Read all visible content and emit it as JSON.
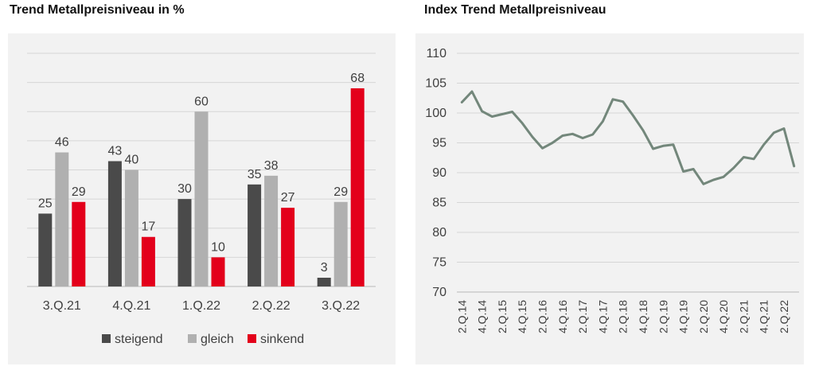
{
  "chart_data": [
    {
      "type": "bar",
      "title": "Trend Metallpreisniveau in %",
      "categories": [
        "3.Q.21",
        "4.Q.21",
        "1.Q.22",
        "2.Q.22",
        "3.Q.22"
      ],
      "series": [
        {
          "name": "steigend",
          "values": [
            25,
            43,
            30,
            35,
            3
          ],
          "color": "#4a4a4a"
        },
        {
          "name": "gleich",
          "values": [
            46,
            40,
            60,
            38,
            29
          ],
          "color": "#b0b0b0"
        },
        {
          "name": "sinkend",
          "values": [
            29,
            17,
            10,
            27,
            68
          ],
          "color": "#e3001b"
        }
      ],
      "ylim": [
        0,
        80
      ],
      "grid": true,
      "legend": "bottom"
    },
    {
      "type": "line",
      "title": "Index Trend Metallpreisniveau",
      "x": [
        "2.Q.14",
        "3.Q.14",
        "4.Q.14",
        "1.Q.15",
        "2.Q.15",
        "3.Q.15",
        "4.Q.15",
        "1.Q.16",
        "2.Q.16",
        "3.Q.16",
        "4.Q.16",
        "1.Q.17",
        "2.Q.17",
        "3.Q.17",
        "4.Q.17",
        "1.Q.18",
        "2.Q.18",
        "3.Q.18",
        "4.Q.18",
        "1.Q.19",
        "2.Q.19",
        "3.Q.19",
        "4.Q.19",
        "1.Q.20",
        "2.Q.20",
        "3.Q.20",
        "4.Q.20",
        "1.Q.21",
        "2.Q.21",
        "3.Q.21",
        "4.Q.21",
        "1.Q.22",
        "2.Q.22",
        "3.Q.22"
      ],
      "xticks": [
        "2.Q.14",
        "4.Q.14",
        "2.Q.15",
        "4.Q.15",
        "2.Q.16",
        "4.Q.16",
        "2.Q.17",
        "4.Q.17",
        "2.Q.18",
        "4.Q.18",
        "2.Q.19",
        "4.Q.19",
        "2.Q.20",
        "4.Q.20",
        "2.Q.21",
        "4.Q.21",
        "2.Q.22"
      ],
      "series": [
        {
          "values": [
            101.8,
            103.6,
            100.3,
            99.4,
            99.8,
            100.2,
            98.3,
            96.0,
            94.1,
            95.0,
            96.2,
            96.5,
            95.8,
            96.4,
            98.6,
            102.3,
            101.9,
            99.6,
            97.1,
            94.0,
            94.5,
            94.7,
            90.2,
            90.6,
            88.1,
            88.8,
            89.3,
            90.8,
            92.6,
            92.3,
            94.7,
            96.7,
            97.4,
            91.1
          ],
          "color": "#73877b"
        }
      ],
      "yticks": [
        "110",
        "105",
        "100",
        "95",
        "90",
        "85",
        "80",
        "75",
        "70"
      ],
      "ylim": [
        70,
        110
      ],
      "grid": true
    }
  ]
}
